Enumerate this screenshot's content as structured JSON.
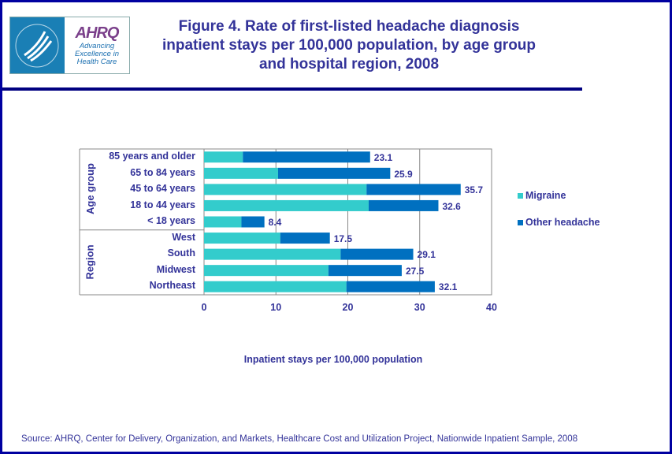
{
  "logo": {
    "text": "AHRQ",
    "tagline": "Advancing Excellence in Health Care",
    "seal_text": "DEPARTMENT OF HEALTH & HUMAN SERVICES USA"
  },
  "title": "Figure 4. Rate of first-listed headache diagnosis inpatient stays per 100,000 population, by age group and hospital region, 2008",
  "source": "Source: AHRQ, Center for Delivery, Organization, and Markets, Healthcare Cost and Utilization Project, Nationwide Inpatient Sample, 2008",
  "chart_data": {
    "type": "bar",
    "orientation": "horizontal",
    "stacked": true,
    "title": "Figure 4. Rate of first-listed headache diagnosis inpatient stays per 100,000 population, by age group and hospital region, 2008",
    "xlabel": "Inpatient stays per 100,000 population",
    "groups": [
      {
        "name": "Age group",
        "categories": [
          "85 years and older",
          "65 to 84 years",
          "45 to 64 years",
          "18 to 44 years",
          "< 18 years"
        ]
      },
      {
        "name": "Region",
        "categories": [
          "West",
          "South",
          "Midwest",
          "Northeast"
        ]
      }
    ],
    "categories": [
      "85 years and older",
      "65 to 84 years",
      "45 to 64 years",
      "18 to 44 years",
      "< 18 years",
      "West",
      "South",
      "Midwest",
      "Northeast"
    ],
    "series": [
      {
        "name": "Migraine",
        "color": "#33cccc",
        "values": [
          5.4,
          10.3,
          22.6,
          22.9,
          5.2,
          10.6,
          19.0,
          17.3,
          19.8
        ]
      },
      {
        "name": "Other headache",
        "color": "#0070c0",
        "values": [
          17.7,
          15.6,
          13.1,
          9.7,
          3.2,
          6.9,
          10.1,
          10.2,
          12.3
        ]
      }
    ],
    "totals": [
      "23.1",
      "25.9",
      "35.7",
      "32.6",
      "8.4",
      "17.5",
      "29.1",
      "27.5",
      "32.1"
    ],
    "xlim": [
      0,
      40
    ],
    "xticks": [
      "0",
      "10",
      "20",
      "30",
      "40"
    ],
    "grid": true,
    "legend_position": "right"
  }
}
